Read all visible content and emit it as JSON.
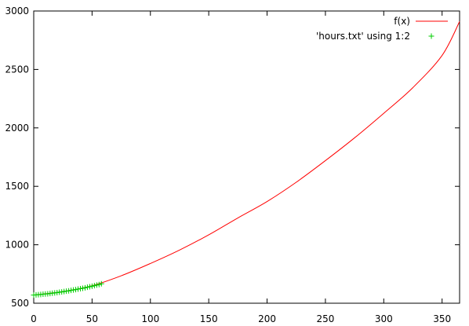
{
  "chart_data": {
    "type": "line",
    "title": "",
    "xlabel": "",
    "ylabel": "",
    "xlim": [
      0,
      365
    ],
    "ylim": [
      500,
      3000
    ],
    "xticks": [
      0,
      50,
      100,
      150,
      200,
      250,
      300,
      350
    ],
    "yticks": [
      500,
      1000,
      1500,
      2000,
      2500,
      3000
    ],
    "grid": false,
    "legend_position": "top-right",
    "series": [
      {
        "name": "f(x)",
        "kind": "line",
        "color": "#ff0000",
        "x": [
          0,
          25,
          50,
          75,
          100,
          125,
          150,
          175,
          200,
          225,
          250,
          275,
          300,
          325,
          350,
          365
        ],
        "y": [
          570,
          600,
          650,
          735,
          840,
          955,
          1085,
          1230,
          1370,
          1535,
          1720,
          1915,
          2125,
          2345,
          2620,
          2910
        ]
      },
      {
        "name": "'hours.txt' using 1:2",
        "kind": "scatter",
        "marker": "+",
        "color": "#00cc00",
        "x": [
          0,
          2,
          4,
          6,
          8,
          10,
          12,
          14,
          16,
          18,
          20,
          22,
          24,
          26,
          28,
          30,
          32,
          34,
          36,
          38,
          40,
          42,
          44,
          46,
          48,
          50,
          52,
          54,
          56,
          58
        ],
        "y": [
          570,
          571,
          573,
          575,
          577,
          579,
          581,
          583,
          586,
          588,
          591,
          594,
          597,
          600,
          603,
          606,
          610,
          613,
          617,
          621,
          624,
          628,
          632,
          637,
          641,
          645,
          650,
          655,
          660,
          666
        ]
      }
    ]
  }
}
